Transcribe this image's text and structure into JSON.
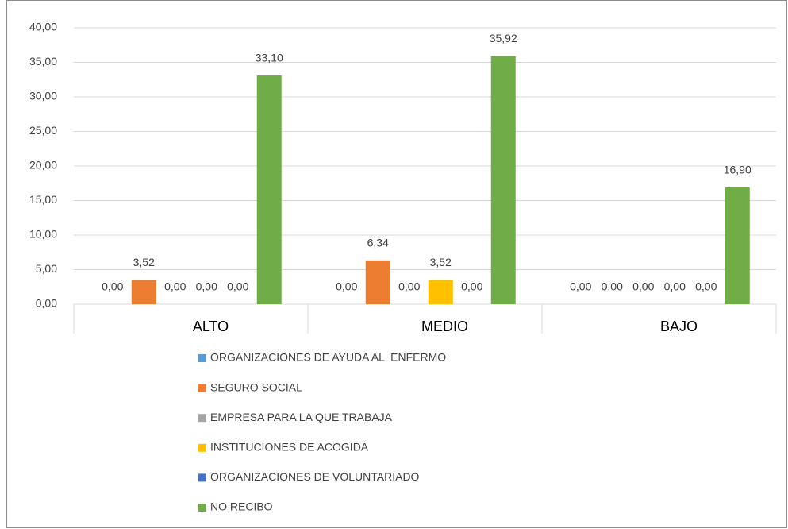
{
  "chart_data": {
    "type": "bar",
    "categories": [
      "ALTO",
      "MEDIO",
      "BAJO"
    ],
    "series": [
      {
        "name": "ORGANIZACIONES DE AYUDA AL  ENFERMO",
        "color": "#5b9bd5",
        "values": [
          0,
          0,
          0
        ],
        "value_labels": [
          "0,00",
          "0,00",
          "0,00"
        ]
      },
      {
        "name": "SEGURO SOCIAL",
        "color": "#ed7d31",
        "values": [
          3.52,
          6.34,
          0
        ],
        "value_labels": [
          "3,52",
          "6,34",
          "0,00"
        ]
      },
      {
        "name": "EMPRESA PARA LA QUE TRABAJA",
        "color": "#a5a5a5",
        "values": [
          0,
          0,
          0
        ],
        "value_labels": [
          "0,00",
          "0,00",
          "0,00"
        ]
      },
      {
        "name": "INSTITUCIONES DE ACOGIDA",
        "color": "#ffc000",
        "values": [
          0,
          3.52,
          0
        ],
        "value_labels": [
          "0,00",
          "3,52",
          "0,00"
        ]
      },
      {
        "name": "ORGANIZACIONES DE VOLUNTARIADO",
        "color": "#4472c4",
        "values": [
          0,
          0,
          0
        ],
        "value_labels": [
          "0,00",
          "0,00",
          "0,00"
        ]
      },
      {
        "name": "NO RECIBO",
        "color": "#70ad47",
        "values": [
          33.1,
          35.92,
          16.9
        ],
        "value_labels": [
          "33,10",
          "35,92",
          "16,90"
        ]
      }
    ],
    "ylim": [
      0,
      40
    ],
    "yticks": [
      {
        "value": 0,
        "label": "0,00"
      },
      {
        "value": 5,
        "label": "5,00"
      },
      {
        "value": 10,
        "label": "10,00"
      },
      {
        "value": 15,
        "label": "15,00"
      },
      {
        "value": 20,
        "label": "20,00"
      },
      {
        "value": 25,
        "label": "25,00"
      },
      {
        "value": 30,
        "label": "30,00"
      },
      {
        "value": 35,
        "label": "35,00"
      },
      {
        "value": 40,
        "label": "40,00"
      }
    ],
    "grid": true,
    "legend": "bottom"
  }
}
